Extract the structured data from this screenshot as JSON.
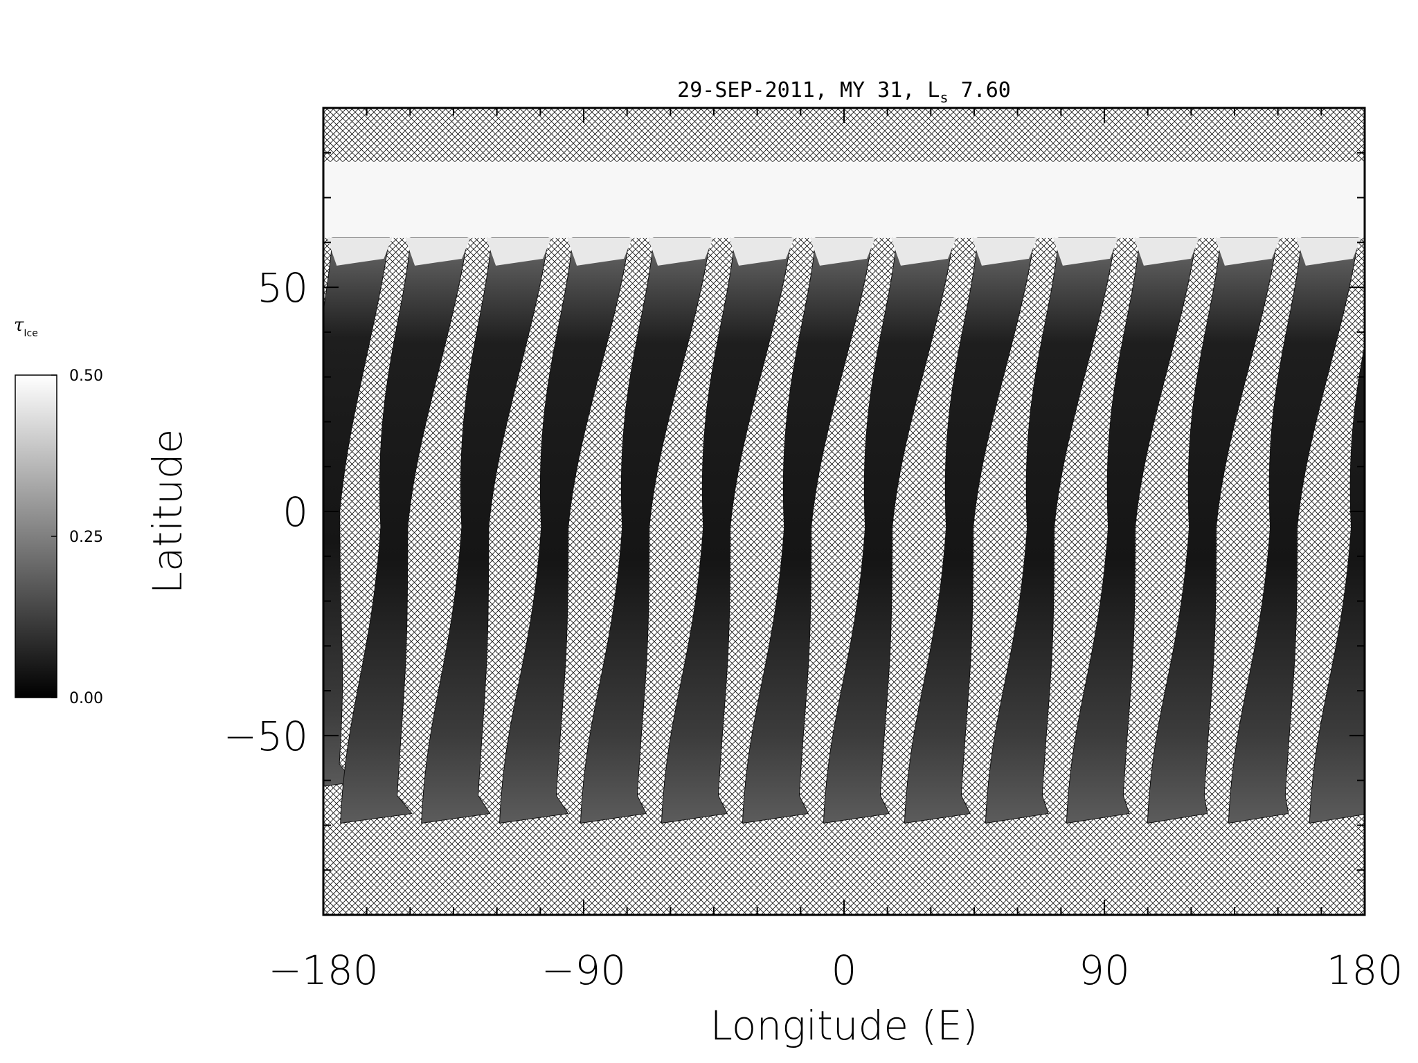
{
  "chart_data": {
    "type": "heatmap",
    "title": {
      "date": "29-SEP-2011",
      "mars_year": "MY 31",
      "ls_prefix": "L",
      "ls_subscript": "s",
      "ls_value": "7.60"
    },
    "xlabel": "Longitude (E)",
    "ylabel": "Latitude",
    "xlim": [
      -180,
      180
    ],
    "ylim": [
      -90,
      90
    ],
    "x_ticks": [
      -180,
      -90,
      0,
      90,
      180
    ],
    "x_tick_labels": [
      "−180",
      "−90",
      "0",
      "90",
      "180"
    ],
    "y_ticks": [
      -50,
      0,
      50
    ],
    "y_tick_labels": [
      "−50",
      "0",
      "50"
    ],
    "x_minor_step": 15,
    "y_minor_step": 10,
    "no_data_pattern": "crosshatch",
    "polar_cap_latitude_range": [
      61,
      78
    ],
    "swaths": [
      {
        "lon_north": -167,
        "lon_south": -185,
        "lat_top": 61,
        "lat_bottom": -61,
        "tip_lon": -178
      },
      {
        "lon_north": -140,
        "lon_south": -165,
        "lat_top": 61,
        "lat_bottom": -68,
        "tip_lon": -158
      },
      {
        "lon_north": -112,
        "lon_south": -137,
        "lat_top": 61,
        "lat_bottom": -68,
        "tip_lon": -131
      },
      {
        "lon_north": -84,
        "lon_south": -110,
        "lat_top": 61,
        "lat_bottom": -68,
        "tip_lon": -104
      },
      {
        "lon_north": -56,
        "lon_south": -82,
        "lat_top": 61,
        "lat_bottom": -68,
        "tip_lon": -77
      },
      {
        "lon_north": -28,
        "lon_south": -54,
        "lat_top": 61,
        "lat_bottom": -68,
        "tip_lon": -49
      },
      {
        "lon_north": 0,
        "lon_south": -26,
        "lat_top": 61,
        "lat_bottom": -68,
        "tip_lon": -21
      },
      {
        "lon_north": 28,
        "lon_south": 2,
        "lat_top": 61,
        "lat_bottom": -68,
        "tip_lon": 7
      },
      {
        "lon_north": 56,
        "lon_south": 30,
        "lat_top": 61,
        "lat_bottom": -68,
        "tip_lon": 35
      },
      {
        "lon_north": 84,
        "lon_south": 58,
        "lat_top": 61,
        "lat_bottom": -68,
        "tip_lon": 62
      },
      {
        "lon_north": 112,
        "lon_south": 86,
        "lat_top": 61,
        "lat_bottom": -68,
        "tip_lon": 90
      },
      {
        "lon_north": 140,
        "lon_south": 114,
        "lat_top": 61,
        "lat_bottom": -68,
        "tip_lon": 117
      },
      {
        "lon_north": 168,
        "lon_south": 142,
        "lat_top": 61,
        "lat_bottom": -68,
        "tip_lon": 145
      },
      {
        "lon_north": 196,
        "lon_south": 170,
        "lat_top": 61,
        "lat_bottom": -68,
        "tip_lon": 173
      }
    ],
    "colorbar": {
      "title": "τ",
      "title_sub": "Ice",
      "min": 0.0,
      "max": 0.5,
      "ticks": [
        0.0,
        0.25,
        0.5
      ],
      "tick_labels": [
        "0.00",
        "0.25",
        "0.50"
      ],
      "colormap": "grayscale",
      "color_min": "#000000",
      "color_max": "#ffffff"
    }
  }
}
